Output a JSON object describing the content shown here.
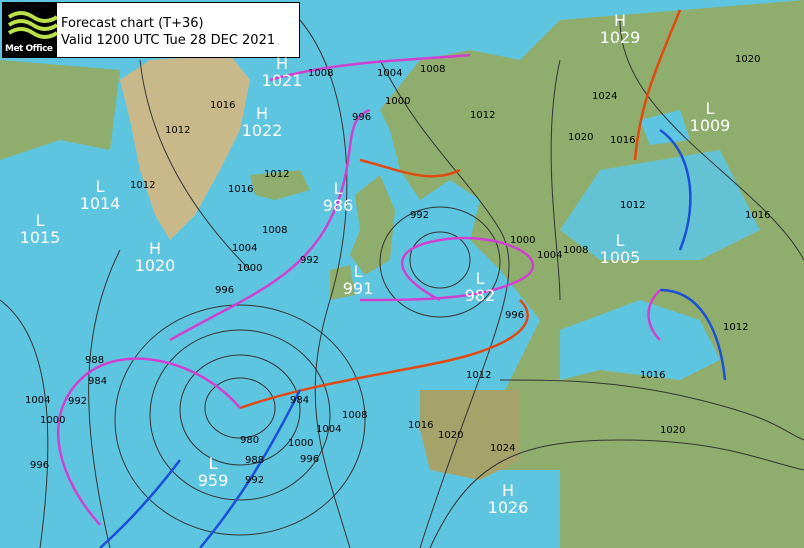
{
  "header": {
    "logo": "Met Office",
    "line1": "Forecast chart (T+36)",
    "line2": "Valid 1200 UTC Tue 28 DEC 2021"
  },
  "colors": {
    "sea": "#5ec5e0",
    "land": "#8fae6e",
    "ice": "#c9b98a",
    "cold_front": "#1a4fd6",
    "warm_front": "#e04a10",
    "occluded_front": "#d040d0",
    "isobar": "#333333"
  },
  "pressure_centres": [
    {
      "type": "H",
      "value": "1029"
    },
    {
      "type": "L",
      "value": "1009"
    },
    {
      "type": "H",
      "value": "1021"
    },
    {
      "type": "H",
      "value": "1022"
    },
    {
      "type": "L",
      "value": "1014"
    },
    {
      "type": "L",
      "value": "1015"
    },
    {
      "type": "H",
      "value": "1020"
    },
    {
      "type": "L",
      "value": "986"
    },
    {
      "type": "L",
      "value": "991"
    },
    {
      "type": "L",
      "value": "982"
    },
    {
      "type": "L",
      "value": "1005"
    },
    {
      "type": "L",
      "value": "959"
    },
    {
      "type": "H",
      "value": "1026"
    }
  ],
  "isobar_labels": [
    "1004",
    "1008",
    "1000",
    "996",
    "1012",
    "1020",
    "1024",
    "1016",
    "1020",
    "1016",
    "1012",
    "992",
    "1000",
    "1004",
    "1008",
    "996",
    "1012",
    "1016",
    "1020",
    "1024",
    "1016",
    "1020",
    "1012",
    "1008",
    "1004",
    "1000",
    "996",
    "992",
    "988",
    "980",
    "984",
    "988",
    "984",
    "992",
    "1004",
    "1000",
    "996",
    "996",
    "1000",
    "1004",
    "992",
    "1012",
    "1016",
    "1012",
    "1016",
    "1012",
    "1008",
    "1008"
  ]
}
